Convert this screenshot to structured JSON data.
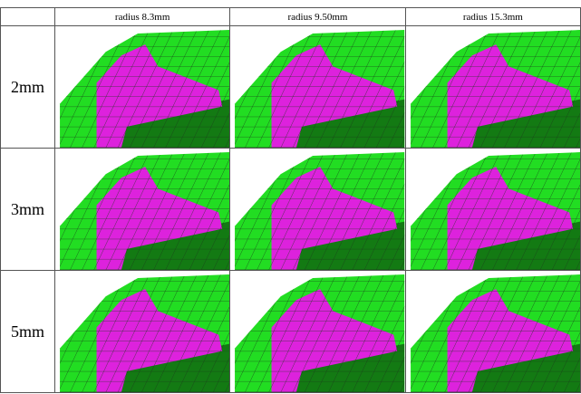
{
  "table": {
    "columns": [
      "radius 8.3mm",
      "radius 9.50mm",
      "radius 15.3mm"
    ],
    "rows": [
      "2mm",
      "3mm",
      "5mm"
    ]
  }
}
